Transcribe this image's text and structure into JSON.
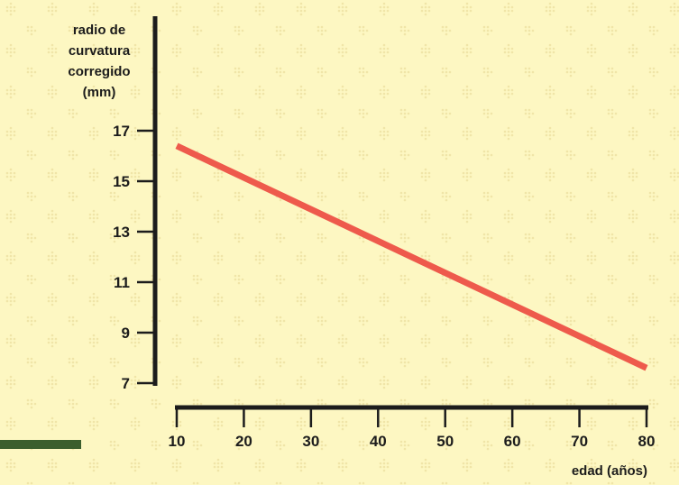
{
  "chart_data": {
    "type": "line",
    "ylabel": [
      "radio de",
      "curvatura",
      "corregido",
      "(mm)"
    ],
    "xlabel": "edad (años)",
    "x_ticks": [
      10,
      20,
      30,
      40,
      50,
      60,
      70,
      80
    ],
    "y_ticks": [
      17,
      15,
      13,
      11,
      9,
      7
    ],
    "xlim": [
      10,
      80
    ],
    "ylim": [
      7,
      17
    ],
    "series": [
      {
        "x": [
          10,
          80
        ],
        "values": [
          16.4,
          7.6
        ]
      }
    ],
    "colors": {
      "line": "#ee5a4c",
      "background": "#fdf7c2",
      "axis": "#1c1c1c",
      "stripe": "#3b5e2d"
    }
  }
}
